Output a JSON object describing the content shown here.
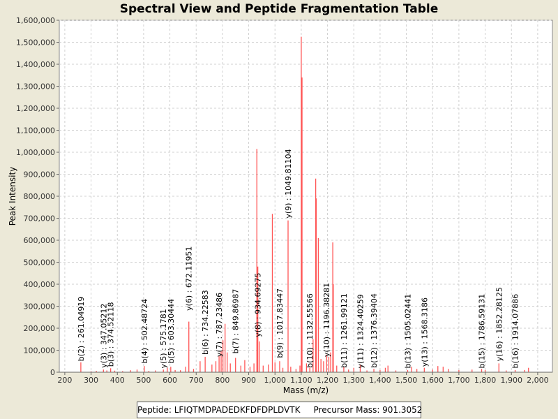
{
  "chart_data": {
    "type": "bar",
    "title": "Spectral View and Peptide Fragmentation Table",
    "xlabel": "Mass (m/z)",
    "ylabel": "Peak Intensity",
    "xlim": [
      179,
      2056
    ],
    "ylim": [
      0,
      1600000
    ],
    "xticks": [
      200,
      300,
      400,
      500,
      600,
      700,
      800,
      900,
      1000,
      1100,
      1200,
      1300,
      1400,
      1500,
      1600,
      1700,
      1800,
      1900,
      2000
    ],
    "yticks": [
      0,
      100000,
      200000,
      300000,
      400000,
      500000,
      600000,
      700000,
      800000,
      900000,
      1000000,
      1100000,
      1200000,
      1300000,
      1400000,
      1500000,
      1600000
    ],
    "grid": true,
    "series_color": "#ff5555",
    "peaks": [
      [
        261.05,
        45000
      ],
      [
        300,
        4000
      ],
      [
        320,
        6000
      ],
      [
        347.05,
        12000
      ],
      [
        360,
        8000
      ],
      [
        374.52,
        18000
      ],
      [
        390,
        7000
      ],
      [
        420,
        5000
      ],
      [
        450,
        9000
      ],
      [
        475,
        12000
      ],
      [
        502.49,
        28000
      ],
      [
        520,
        6000
      ],
      [
        545,
        8000
      ],
      [
        575.18,
        12000
      ],
      [
        590,
        20000
      ],
      [
        603.3,
        25000
      ],
      [
        620,
        10000
      ],
      [
        640,
        9000
      ],
      [
        660,
        25000
      ],
      [
        672.12,
        230000
      ],
      [
        690,
        15000
      ],
      [
        715,
        50000
      ],
      [
        734.23,
        70000
      ],
      [
        760,
        35000
      ],
      [
        775,
        50000
      ],
      [
        787.23,
        75000
      ],
      [
        795,
        95000
      ],
      [
        802,
        145000
      ],
      [
        810,
        220000
      ],
      [
        818,
        90000
      ],
      [
        830,
        40000
      ],
      [
        849.87,
        65000
      ],
      [
        870,
        30000
      ],
      [
        885,
        55000
      ],
      [
        905,
        25000
      ],
      [
        920,
        40000
      ],
      [
        931,
        1015000
      ],
      [
        934.69,
        480000
      ],
      [
        940,
        140000
      ],
      [
        955,
        30000
      ],
      [
        975,
        35000
      ],
      [
        990,
        720000
      ],
      [
        1000,
        45000
      ],
      [
        1017.83,
        50000
      ],
      [
        1030,
        20000
      ],
      [
        1049.81,
        690000
      ],
      [
        1060,
        25000
      ],
      [
        1080,
        15000
      ],
      [
        1095,
        30000
      ],
      [
        1100,
        1525000
      ],
      [
        1103,
        1340000
      ],
      [
        1120,
        40000
      ],
      [
        1132.56,
        20000
      ],
      [
        1145,
        150000
      ],
      [
        1155,
        880000
      ],
      [
        1157,
        790000
      ],
      [
        1165,
        610000
      ],
      [
        1175,
        60000
      ],
      [
        1185,
        50000
      ],
      [
        1196.38,
        80000
      ],
      [
        1205,
        70000
      ],
      [
        1212,
        90000
      ],
      [
        1220,
        590000
      ],
      [
        1222,
        400000
      ],
      [
        1235,
        30000
      ],
      [
        1261.99,
        25000
      ],
      [
        1280,
        12000
      ],
      [
        1300,
        20000
      ],
      [
        1324.4,
        35000
      ],
      [
        1350,
        8000
      ],
      [
        1376.39,
        15000
      ],
      [
        1400,
        10000
      ],
      [
        1420,
        20000
      ],
      [
        1430,
        30000
      ],
      [
        1460,
        8000
      ],
      [
        1505.02,
        10000
      ],
      [
        1520,
        25000
      ],
      [
        1540,
        15000
      ],
      [
        1568.32,
        20000
      ],
      [
        1600,
        12000
      ],
      [
        1620,
        28000
      ],
      [
        1640,
        25000
      ],
      [
        1660,
        15000
      ],
      [
        1700,
        10000
      ],
      [
        1750,
        12000
      ],
      [
        1786.59,
        15000
      ],
      [
        1800,
        10000
      ],
      [
        1852.28,
        40000
      ],
      [
        1880,
        8000
      ],
      [
        1914.08,
        10000
      ],
      [
        1950,
        10000
      ],
      [
        1965,
        20000
      ]
    ],
    "annotations": [
      {
        "label": "b(2) : 261.04919",
        "mz": 261.04919,
        "intensity": 40000
      },
      {
        "label": "y(3) : 347.05212",
        "mz": 347.05212,
        "intensity": 10000
      },
      {
        "label": "b(3) : 374.52118",
        "mz": 374.52118,
        "intensity": 15000
      },
      {
        "label": "b(4) : 502.48724",
        "mz": 502.48724,
        "intensity": 30000
      },
      {
        "label": "y(5) : 575.1781",
        "mz": 575.1781,
        "intensity": 8000
      },
      {
        "label": "b(5) : 603.30444",
        "mz": 603.30444,
        "intensity": 30000
      },
      {
        "label": "y(6) : 672.11951",
        "mz": 672.11951,
        "intensity": 270000
      },
      {
        "label": "b(6) : 734.22583",
        "mz": 734.22583,
        "intensity": 70000
      },
      {
        "label": "y(7) : 787.23486",
        "mz": 787.23486,
        "intensity": 60000
      },
      {
        "label": "b(7) : 849.86987",
        "mz": 849.86987,
        "intensity": 75000
      },
      {
        "label": "y(8) : 934.69275",
        "mz": 934.69275,
        "intensity": 150000
      },
      {
        "label": "b(9) : 1017.83447",
        "mz": 1017.83447,
        "intensity": 55000
      },
      {
        "label": "y(9) : 1049.81104",
        "mz": 1049.81104,
        "intensity": 690000
      },
      {
        "label": "b(10) : 1132.55566",
        "mz": 1132.55566,
        "intensity": 10000
      },
      {
        "label": "y(10) : 1196.38281",
        "mz": 1196.38281,
        "intensity": 60000
      },
      {
        "label": "b(11) : 1261.99121",
        "mz": 1261.99121,
        "intensity": 10000
      },
      {
        "label": "y(11) : 1324.40259",
        "mz": 1324.40259,
        "intensity": 8000
      },
      {
        "label": "b(12) : 1376.39404",
        "mz": 1376.39404,
        "intensity": 10000
      },
      {
        "label": "b(13) : 1505.02441",
        "mz": 1505.02441,
        "intensity": 8000
      },
      {
        "label": "y(13) : 1568.3186",
        "mz": 1568.3186,
        "intensity": 15000
      },
      {
        "label": "b(15) : 1786.59131",
        "mz": 1786.59131,
        "intensity": 8000
      },
      {
        "label": "y(16) : 1852.28125",
        "mz": 1852.28125,
        "intensity": 40000
      },
      {
        "label": "b(16) : 1914.07886",
        "mz": 1914.07886,
        "intensity": 8000
      }
    ],
    "legend": {
      "peptide": "Peptide: LFIQTMDPADEDKFDFDPLDVTK",
      "precursor": "Precursor Mass: 901.3052"
    }
  }
}
